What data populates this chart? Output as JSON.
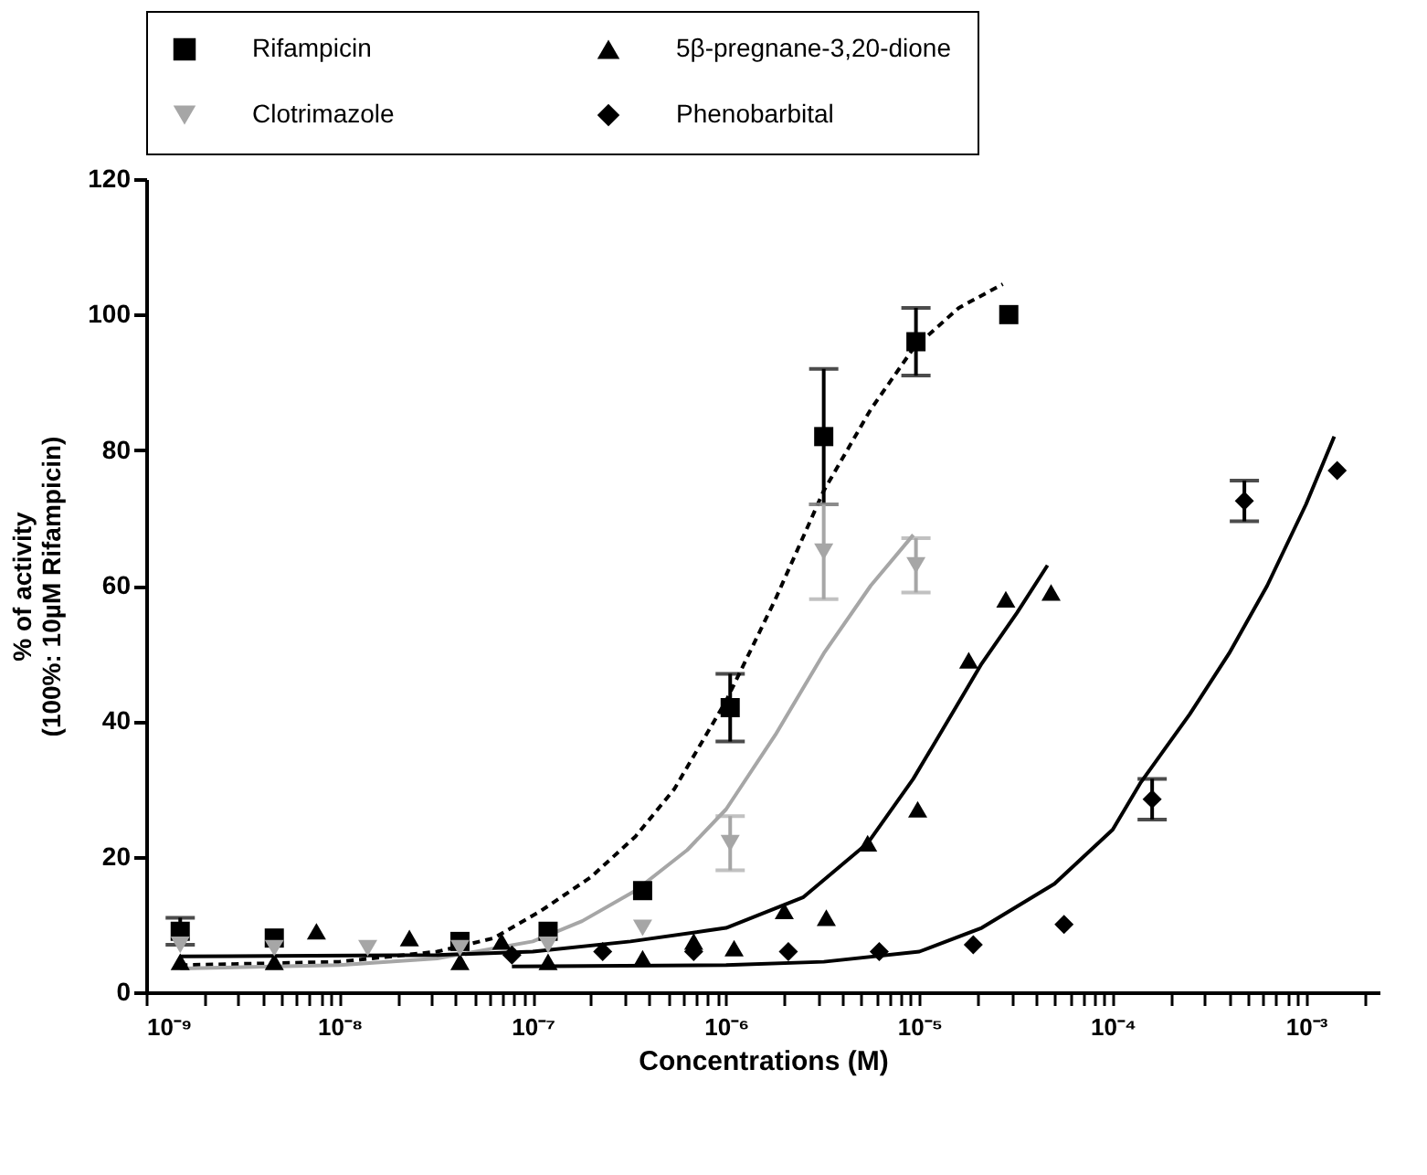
{
  "chart_data": {
    "type": "scatter",
    "xlabel": "Concentrations (M)",
    "ylabel": "% of activity\n(100%: 10µM Rifampicin)",
    "log": "x",
    "xlim": [
      1e-09,
      0.0024
    ],
    "ylim": [
      0,
      120
    ],
    "yticks": [
      0,
      20,
      40,
      60,
      80,
      100,
      120
    ],
    "xticks": [
      {
        "value": 1e-09,
        "label": "10⁻⁹"
      },
      {
        "value": 2e-09,
        "label": null
      },
      {
        "value": 3e-09,
        "label": null
      },
      {
        "value": 4e-09,
        "label": null
      },
      {
        "value": 5e-09,
        "label": null
      },
      {
        "value": 6e-09,
        "label": null
      },
      {
        "value": 7e-09,
        "label": null
      },
      {
        "value": 8e-09,
        "label": null
      },
      {
        "value": 9e-09,
        "label": null
      },
      {
        "value": 1e-08,
        "label": "10⁻⁸"
      },
      {
        "value": 2e-08,
        "label": null
      },
      {
        "value": 3e-08,
        "label": null
      },
      {
        "value": 4e-08,
        "label": null
      },
      {
        "value": 5e-08,
        "label": null
      },
      {
        "value": 6e-08,
        "label": null
      },
      {
        "value": 7e-08,
        "label": null
      },
      {
        "value": 8e-08,
        "label": null
      },
      {
        "value": 9e-08,
        "label": null
      },
      {
        "value": 1e-07,
        "label": "10⁻⁷"
      },
      {
        "value": 2e-07,
        "label": null
      },
      {
        "value": 3e-07,
        "label": null
      },
      {
        "value": 4e-07,
        "label": null
      },
      {
        "value": 5e-07,
        "label": null
      },
      {
        "value": 6e-07,
        "label": null
      },
      {
        "value": 7e-07,
        "label": null
      },
      {
        "value": 8e-07,
        "label": null
      },
      {
        "value": 9e-07,
        "label": null
      },
      {
        "value": 1e-06,
        "label": "10⁻⁶"
      },
      {
        "value": 2e-06,
        "label": null
      },
      {
        "value": 3e-06,
        "label": null
      },
      {
        "value": 4e-06,
        "label": null
      },
      {
        "value": 5e-06,
        "label": null
      },
      {
        "value": 6e-06,
        "label": null
      },
      {
        "value": 7e-06,
        "label": null
      },
      {
        "value": 8e-06,
        "label": null
      },
      {
        "value": 9e-06,
        "label": null
      },
      {
        "value": 1e-05,
        "label": "10⁻⁵"
      },
      {
        "value": 2e-05,
        "label": null
      },
      {
        "value": 3e-05,
        "label": null
      },
      {
        "value": 4e-05,
        "label": null
      },
      {
        "value": 5e-05,
        "label": null
      },
      {
        "value": 6e-05,
        "label": null
      },
      {
        "value": 7e-05,
        "label": null
      },
      {
        "value": 8e-05,
        "label": null
      },
      {
        "value": 9e-05,
        "label": null
      },
      {
        "value": 0.0001,
        "label": "10⁻⁴"
      },
      {
        "value": 0.0002,
        "label": null
      },
      {
        "value": 0.0003,
        "label": null
      },
      {
        "value": 0.0004,
        "label": null
      },
      {
        "value": 0.0005,
        "label": null
      },
      {
        "value": 0.0006,
        "label": null
      },
      {
        "value": 0.0007,
        "label": null
      },
      {
        "value": 0.0008,
        "label": null
      },
      {
        "value": 0.0009,
        "label": null
      },
      {
        "value": 0.001,
        "label": "10⁻³"
      },
      {
        "value": 0.002,
        "label": null
      }
    ],
    "legend": "top",
    "grid": false,
    "series": [
      {
        "name": "Rifampicin",
        "color": "#000000",
        "marker": "square",
        "x": [
          1.5e-09,
          4.6e-09,
          4.2e-08,
          1.2e-07,
          3.7e-07,
          1.05e-06,
          3.2e-06,
          9.6e-06,
          2.9e-05
        ],
        "values": [
          9,
          8,
          7.5,
          9,
          15,
          42,
          82,
          96,
          100
        ],
        "errors": [
          2,
          null,
          null,
          null,
          null,
          5,
          10,
          5,
          null
        ]
      },
      {
        "name": "5β-pregnane-3,20-dione",
        "color": "#000000",
        "marker": "triangle",
        "x": [
          1.5e-09,
          4.6e-09,
          7.6e-09,
          2.3e-08,
          4.2e-08,
          6.9e-08,
          1.2e-07,
          3.7e-07,
          6.8e-07,
          1.1e-06,
          2e-06,
          3.3e-06,
          5.4e-06,
          9.8e-06,
          1.8e-05,
          2.8e-05,
          4.8e-05
        ],
        "values": [
          4.5,
          4.5,
          9,
          8,
          4.5,
          7.5,
          4.5,
          5,
          7.5,
          6.5,
          12,
          11,
          22,
          27,
          49,
          58,
          59
        ]
      },
      {
        "name": "Clotrimazole",
        "color": "#a6a6a6",
        "marker": "triangle-down",
        "x": [
          1.5e-09,
          4.6e-09,
          1.4e-08,
          4.2e-08,
          1.2e-07,
          3.7e-07,
          1.05e-06,
          3.2e-06,
          9.6e-06
        ],
        "values": [
          7,
          6.5,
          6.5,
          6.5,
          7,
          9.5,
          22,
          65,
          63
        ],
        "errors": [
          null,
          null,
          null,
          null,
          null,
          null,
          4,
          7,
          4
        ]
      },
      {
        "name": "Phenobarbital",
        "color": "#000000",
        "marker": "diamond",
        "x": [
          7.8e-08,
          2.3e-07,
          6.8e-07,
          2.1e-06,
          6.2e-06,
          1.9e-05,
          5.6e-05,
          0.00016,
          0.00048,
          0.00145
        ],
        "values": [
          5.5,
          6,
          6,
          6,
          6,
          7,
          10,
          28.5,
          72.5,
          77
        ],
        "errors": [
          null,
          null,
          null,
          null,
          null,
          null,
          null,
          3,
          3,
          null
        ]
      },
      {
        "type": "line",
        "color": "#000000",
        "line_style": "dashed",
        "x": [
          1.5e-09,
          1e-08,
          3.2e-08,
          6.3e-08,
          1.1e-07,
          2e-07,
          3.4e-07,
          5.4e-07,
          1e-06,
          1.8e-06,
          3.2e-06,
          5.6e-06,
          9.3e-06,
          1.6e-05,
          2.7e-05
        ],
        "values": [
          4,
          4.5,
          6,
          8,
          12,
          17,
          23,
          30,
          43,
          58,
          74,
          86,
          95,
          101,
          104.5
        ]
      },
      {
        "type": "line",
        "color": "#a6a6a6",
        "line_style": "solid",
        "x": [
          1.5e-09,
          1e-08,
          3.2e-08,
          1e-07,
          1.8e-07,
          3.4e-07,
          6.3e-07,
          1e-06,
          1.8e-06,
          3.2e-06,
          5.6e-06,
          9.3e-06
        ],
        "values": [
          3.5,
          4,
          5,
          7.5,
          10.5,
          15,
          21,
          27,
          38,
          50,
          60,
          67.5
        ]
      },
      {
        "type": "line",
        "color": "#000000",
        "line_style": "solid",
        "x": [
          1.5e-09,
          3.2e-08,
          1e-07,
          3.2e-07,
          1e-06,
          2.5e-06,
          5.4e-06,
          9.3e-06,
          1.4e-05,
          2.1e-05,
          3.2e-05,
          4.6e-05
        ],
        "values": [
          5.3,
          5.5,
          6,
          7.5,
          9.5,
          14,
          22,
          31.5,
          40,
          48.5,
          56,
          63
        ]
      },
      {
        "type": "line",
        "color": "#000000",
        "line_style": "solid",
        "x": [
          7.8e-08,
          1e-06,
          3.2e-06,
          1e-05,
          2.1e-05,
          5e-05,
          0.0001,
          0.00014,
          0.00025,
          0.0004,
          0.00063,
          0.001,
          0.0014
        ],
        "values": [
          3.8,
          4,
          4.5,
          6,
          9.5,
          16,
          24,
          31,
          41,
          50,
          60,
          72,
          82
        ]
      }
    ]
  }
}
